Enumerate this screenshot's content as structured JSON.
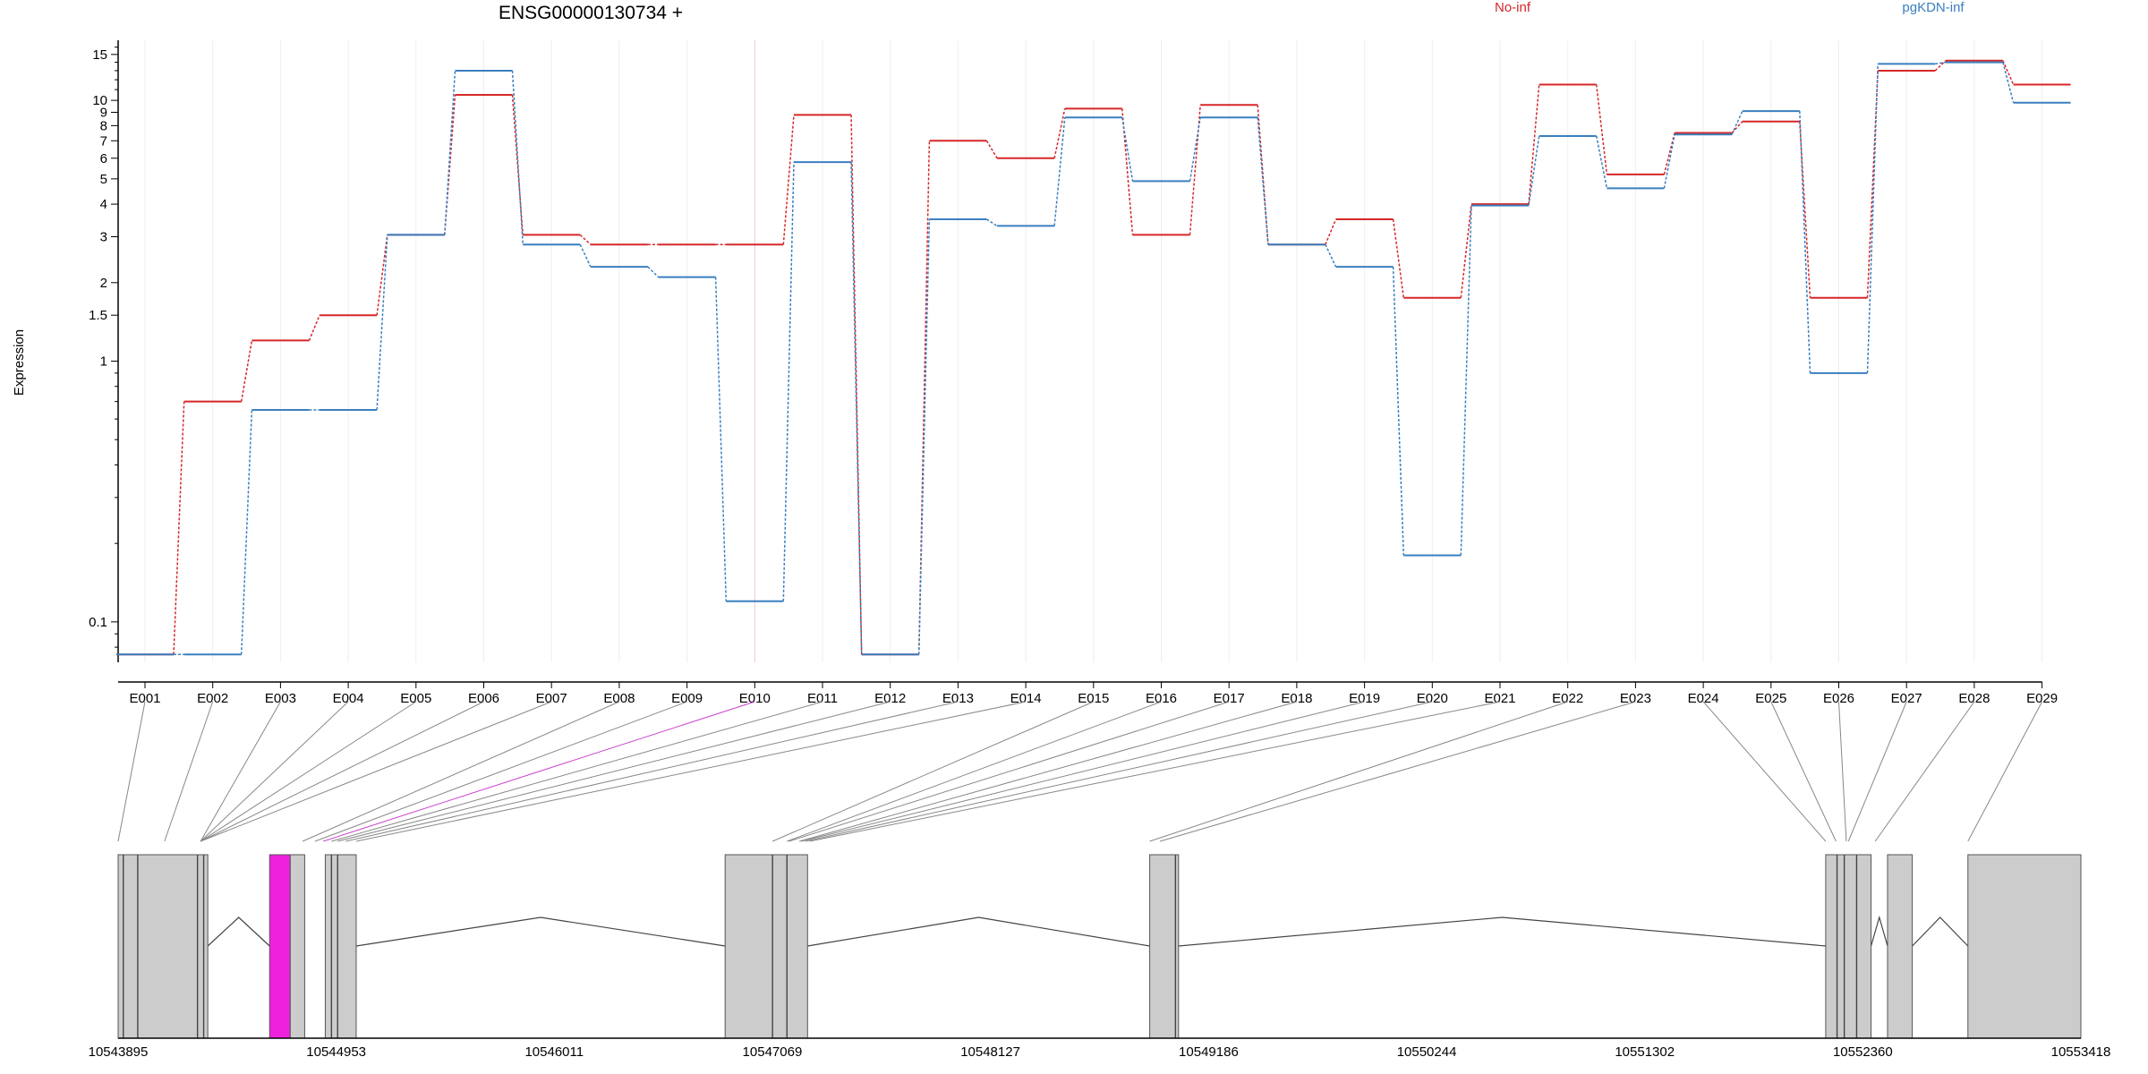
{
  "chart_data": {
    "type": "line",
    "title": "ENSG00000130734 +",
    "ylabel": "Expression",
    "yscale": "log",
    "ylim": [
      0.07,
      17
    ],
    "y_ticks": [
      {
        "value": 0.1,
        "label": "0.1"
      },
      {
        "value": 1,
        "label": "1"
      },
      {
        "value": 1.5,
        "label": "1.5"
      },
      {
        "value": 2,
        "label": "2"
      },
      {
        "value": 3,
        "label": "3"
      },
      {
        "value": 4,
        "label": "4"
      },
      {
        "value": 5,
        "label": "5"
      },
      {
        "value": 6,
        "label": "6"
      },
      {
        "value": 7,
        "label": "7"
      },
      {
        "value": 8,
        "label": "8"
      },
      {
        "value": 9,
        "label": "9"
      },
      {
        "value": 10,
        "label": "10"
      },
      {
        "value": 15,
        "label": "15"
      }
    ],
    "categories": [
      "E001",
      "E002",
      "E003",
      "E004",
      "E005",
      "E006",
      "E007",
      "E008",
      "E009",
      "E010",
      "E011",
      "E012",
      "E013",
      "E014",
      "E015",
      "E016",
      "E017",
      "E018",
      "E019",
      "E020",
      "E021",
      "E022",
      "E023",
      "E024",
      "E025",
      "E026",
      "E027",
      "E028",
      "E029"
    ],
    "highlight_category": "E010",
    "legend_placement": "top-right",
    "series": [
      {
        "name": "No-inf",
        "color": "#d62728",
        "values": [
          0.075,
          0.7,
          1.2,
          1.5,
          3.05,
          10.5,
          3.05,
          2.8,
          2.8,
          2.8,
          8.8,
          0.075,
          7.0,
          6.0,
          9.3,
          3.05,
          9.6,
          2.8,
          3.5,
          1.75,
          4.0,
          11.5,
          5.2,
          7.5,
          8.3,
          1.75,
          13.0,
          14.2,
          11.5
        ]
      },
      {
        "name": "pgKDN-inf",
        "color": "#3a7fc0",
        "values": [
          0.075,
          0.075,
          0.65,
          0.65,
          3.05,
          13.0,
          2.8,
          2.3,
          2.1,
          0.12,
          5.8,
          0.075,
          3.5,
          3.3,
          8.6,
          4.9,
          8.6,
          2.8,
          2.3,
          0.18,
          3.95,
          7.3,
          4.6,
          7.4,
          9.1,
          0.9,
          13.8,
          14.0,
          9.8
        ]
      }
    ],
    "gene_model": {
      "start": 10543895,
      "end": 10553418,
      "coordinate_ticks": [
        {
          "value": 10543895,
          "label": "10543895"
        },
        {
          "value": 10544953,
          "label": "10544953"
        },
        {
          "value": 10546011,
          "label": "10546011"
        },
        {
          "value": 10547069,
          "label": "10547069"
        },
        {
          "value": 10548127,
          "label": "10548127"
        },
        {
          "value": 10549186,
          "label": "10549186"
        },
        {
          "value": 10550244,
          "label": "10550244"
        },
        {
          "value": 10551302,
          "label": "10551302"
        },
        {
          "value": 10552360,
          "label": "10552360"
        },
        {
          "value": 10553418,
          "label": "10553418"
        }
      ],
      "exon_fill": "#cccccc",
      "highlight_fill": "#ee22dd",
      "exon_blocks": [
        {
          "start": 10543895,
          "end": 10544330
        },
        {
          "start": 10544630,
          "end": 10544730,
          "highlight": true
        },
        {
          "start": 10544730,
          "end": 10544800
        },
        {
          "start": 10544900,
          "end": 10545050
        },
        {
          "start": 10546840,
          "end": 10547240
        },
        {
          "start": 10548900,
          "end": 10549040
        },
        {
          "start": 10552180,
          "end": 10552400
        },
        {
          "start": 10552480,
          "end": 10552600
        },
        {
          "start": 10552870,
          "end": 10553418
        }
      ],
      "exon_dividers": [
        10543920,
        10543990,
        10544280,
        10544310,
        10544930,
        10544960,
        10547070,
        10547140,
        10549025,
        10552235,
        10552270,
        10552330
      ],
      "introns": [
        {
          "from": 10544330,
          "to": 10544630
        },
        {
          "from": 10545050,
          "to": 10546840
        },
        {
          "from": 10547240,
          "to": 10548900
        },
        {
          "from": 10549040,
          "to": 10552180
        },
        {
          "from": 10552400,
          "to": 10552480
        },
        {
          "from": 10552600,
          "to": 10552870
        }
      ],
      "connector_ends": [
        10543895,
        10544120,
        10544295,
        10544295,
        10544295,
        10544295,
        10544295,
        10544790,
        10544850,
        10544890,
        10544930,
        10544960,
        10545000,
        10545050,
        10547070,
        10547140,
        10547150,
        10547200,
        10547210,
        10547230,
        10547250,
        10548900,
        10548950,
        10552180,
        10552230,
        10552280,
        10552290,
        10552420,
        10552870
      ]
    }
  }
}
